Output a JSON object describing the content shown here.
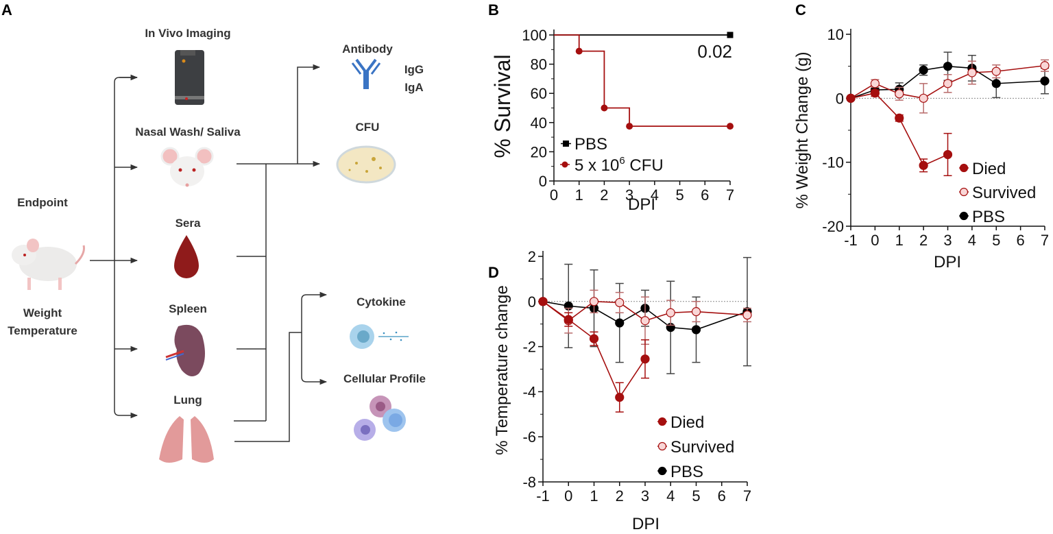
{
  "panels": {
    "a": "A",
    "b": "B",
    "c": "C",
    "d": "D"
  },
  "diagram": {
    "endpoint": "Endpoint",
    "weight": "Weight",
    "temperature": "Temperature",
    "in_vivo": "In Vivo Imaging",
    "nasal": "Nasal Wash/ Saliva",
    "sera": "Sera",
    "spleen": "Spleen",
    "lung": "Lung",
    "antibody": "Antibody",
    "igg": "IgG",
    "iga": "IgA",
    "cfu": "CFU",
    "cytokine": "Cytokine",
    "cellular": "Cellular Profile"
  },
  "colors": {
    "died": "#a50f0f",
    "survived_fill": "#f9d6d6",
    "pbs": "#000000"
  },
  "chart_data": [
    {
      "id": "B",
      "type": "line",
      "step": true,
      "xlabel": "DPI",
      "ylabel": "% Survival",
      "xlim": [
        0,
        7
      ],
      "ylim": [
        0,
        100
      ],
      "xticks": [
        0,
        1,
        2,
        3,
        4,
        5,
        6,
        7
      ],
      "yticks": [
        0,
        20,
        40,
        60,
        80,
        100
      ],
      "annotation": "0.02",
      "legend_position": "bottom-left",
      "series": [
        {
          "name": "PBS",
          "marker": "square",
          "color": "#000000",
          "x": [
            0,
            7
          ],
          "y": [
            100,
            100
          ],
          "markers_at": [
            7
          ]
        },
        {
          "name": "5 x 10",
          "name_sup": "6",
          "name_suffix": " CFU",
          "marker": "circle",
          "color": "#a50f0f",
          "x": [
            0,
            1,
            2,
            3,
            7
          ],
          "y": [
            100,
            88.9,
            50,
            37.5,
            37.5
          ],
          "markers_at": [
            1,
            2,
            3,
            7
          ]
        }
      ]
    },
    {
      "id": "C",
      "type": "line",
      "xlabel": "DPI",
      "ylabel": "% Weight Change (g)",
      "xlim": [
        -1,
        7
      ],
      "ylim": [
        -20,
        10
      ],
      "xticks": [
        -1,
        0,
        1,
        2,
        3,
        4,
        5,
        6,
        7
      ],
      "yticks": [
        -20,
        -10,
        0,
        10
      ],
      "zero_line": true,
      "legend_position": "bottom-right",
      "series": [
        {
          "name": "Died",
          "style": "died",
          "x": [
            -1,
            0,
            1,
            2,
            3
          ],
          "y": [
            0,
            0.8,
            -3.1,
            -10.5,
            -8.8
          ],
          "err": [
            0,
            0.5,
            0.5,
            1.0,
            3.3
          ]
        },
        {
          "name": "Survived",
          "style": "survived",
          "x": [
            -1,
            0,
            1,
            2,
            3,
            4,
            5,
            7
          ],
          "y": [
            0,
            2.3,
            0.7,
            0,
            2.3,
            4.0,
            4.2,
            5.1
          ],
          "err": [
            0,
            0.6,
            1.0,
            2.3,
            1.4,
            1.8,
            1.0,
            0.9
          ]
        },
        {
          "name": "PBS",
          "style": "pbs",
          "x": [
            -1,
            0,
            1,
            2,
            3,
            4,
            5,
            7
          ],
          "y": [
            0,
            1.3,
            1.4,
            4.4,
            5.0,
            4.7,
            2.3,
            2.7
          ],
          "err": [
            0,
            0.3,
            1.0,
            0.8,
            2.2,
            2.0,
            2.2,
            2.0
          ]
        }
      ]
    },
    {
      "id": "D",
      "type": "line",
      "xlabel": "DPI",
      "ylabel": "% Temperature change",
      "xlim": [
        -1,
        7
      ],
      "ylim": [
        -8,
        2
      ],
      "xticks": [
        -1,
        0,
        1,
        2,
        3,
        4,
        5,
        6,
        7
      ],
      "yticks": [
        -8,
        -6,
        -4,
        -2,
        0,
        2
      ],
      "zero_line": true,
      "legend_position": "bottom-right",
      "series": [
        {
          "name": "Died",
          "style": "died",
          "x": [
            -1,
            0,
            1,
            2,
            3
          ],
          "y": [
            0,
            -0.8,
            -1.65,
            -4.25,
            -2.55
          ],
          "err": [
            0,
            0.3,
            0.3,
            0.65,
            0.85
          ]
        },
        {
          "name": "Survived",
          "style": "survived",
          "x": [
            -1,
            0,
            1,
            2,
            3,
            4,
            5,
            7
          ],
          "y": [
            0,
            -0.85,
            0,
            -0.05,
            -0.85,
            -0.5,
            -0.45,
            -0.6
          ],
          "err": [
            0,
            0.55,
            0.5,
            0.45,
            1.05,
            0.55,
            0.45,
            0.3
          ]
        },
        {
          "name": "PBS",
          "style": "pbs",
          "x": [
            -1,
            0,
            1,
            2,
            3,
            4,
            5,
            7
          ],
          "y": [
            0,
            -0.2,
            -0.3,
            -0.95,
            -0.3,
            -1.15,
            -1.25,
            -0.45
          ],
          "err": [
            0,
            1.85,
            1.7,
            1.75,
            0.8,
            2.05,
            1.45,
            2.4
          ]
        }
      ]
    }
  ]
}
